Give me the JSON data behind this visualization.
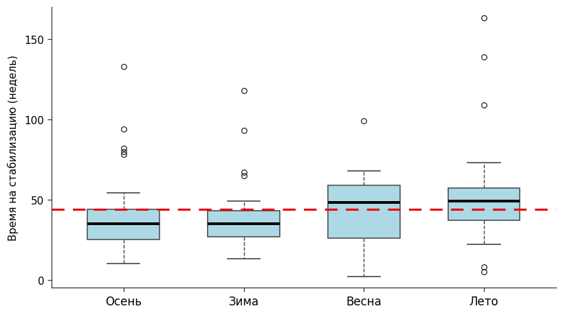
{
  "categories": [
    "Осень",
    "Зима",
    "Весна",
    "Лето"
  ],
  "boxes": [
    {
      "label": "Осень",
      "q1": 25,
      "median": 35,
      "q3": 44,
      "whislo": 10,
      "whishi": 54,
      "fliers": [
        78,
        80,
        82,
        94,
        133
      ]
    },
    {
      "label": "Зима",
      "q1": 27,
      "median": 35,
      "q3": 43,
      "whislo": 13,
      "whishi": 49,
      "fliers": [
        65,
        67,
        93,
        118
      ]
    },
    {
      "label": "Весна",
      "q1": 26,
      "median": 48,
      "q3": 59,
      "whislo": 2,
      "whishi": 68,
      "fliers": [
        99
      ]
    },
    {
      "label": "Лето",
      "q1": 37,
      "median": 49,
      "q3": 57,
      "whislo": 22,
      "whishi": 73,
      "fliers": [
        5,
        8,
        109,
        139,
        163
      ]
    }
  ],
  "mean_line": 43.9,
  "ylim": [
    -5,
    170
  ],
  "yticks": [
    0,
    50,
    100,
    150
  ],
  "ylabel": "Время на стабилизацию (недель)",
  "box_color": "#add8e6",
  "box_edgecolor": "#444444",
  "median_color": "#000000",
  "whisker_color": "#444444",
  "flier_color": "#222222",
  "mean_line_color": "#e8000b",
  "background_color": "#ffffff",
  "dpi": 100,
  "figsize": [
    8.2,
    4.6
  ]
}
